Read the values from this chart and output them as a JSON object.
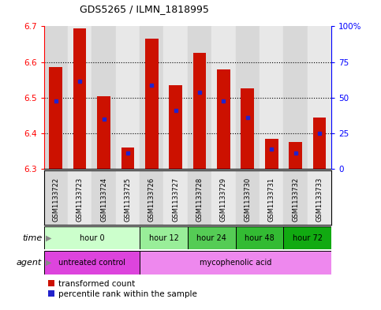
{
  "title": "GDS5265 / ILMN_1818995",
  "samples": [
    "GSM1133722",
    "GSM1133723",
    "GSM1133724",
    "GSM1133725",
    "GSM1133726",
    "GSM1133727",
    "GSM1133728",
    "GSM1133729",
    "GSM1133730",
    "GSM1133731",
    "GSM1133732",
    "GSM1133733"
  ],
  "bar_bottom": 6.3,
  "bar_tops": [
    6.585,
    6.695,
    6.505,
    6.36,
    6.665,
    6.535,
    6.625,
    6.58,
    6.525,
    6.385,
    6.375,
    6.445
  ],
  "blue_positions": [
    6.49,
    6.545,
    6.44,
    6.345,
    6.535,
    6.465,
    6.515,
    6.49,
    6.445,
    6.355,
    6.345,
    6.4
  ],
  "ylim_left": [
    6.3,
    6.7
  ],
  "ylim_right": [
    0,
    100
  ],
  "yticks_left": [
    6.3,
    6.4,
    6.5,
    6.6,
    6.7
  ],
  "yticks_right": [
    0,
    25,
    50,
    75,
    100
  ],
  "ytick_right_labels": [
    "0",
    "25",
    "50",
    "75",
    "100%"
  ],
  "bar_color": "#cc1100",
  "blue_color": "#2222cc",
  "time_groups": [
    {
      "label": "hour 0",
      "start": 0,
      "end": 4,
      "color": "#ccffcc"
    },
    {
      "label": "hour 12",
      "start": 4,
      "end": 6,
      "color": "#99ee99"
    },
    {
      "label": "hour 24",
      "start": 6,
      "end": 8,
      "color": "#55cc55"
    },
    {
      "label": "hour 48",
      "start": 8,
      "end": 10,
      "color": "#33bb33"
    },
    {
      "label": "hour 72",
      "start": 10,
      "end": 12,
      "color": "#11aa11"
    }
  ],
  "agent_groups": [
    {
      "label": "untreated control",
      "start": 0,
      "end": 4,
      "color": "#dd44dd"
    },
    {
      "label": "mycophenolic acid",
      "start": 4,
      "end": 12,
      "color": "#ee88ee"
    }
  ],
  "legend_red": "transformed count",
  "legend_blue": "percentile rank within the sample",
  "col_bg_even": "#d8d8d8",
  "col_bg_odd": "#e8e8e8"
}
